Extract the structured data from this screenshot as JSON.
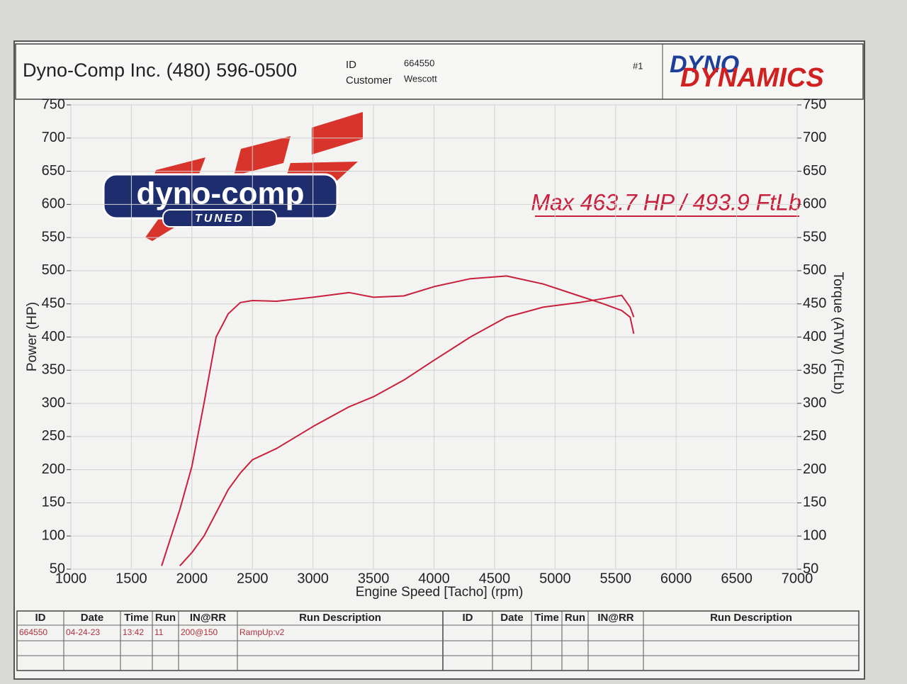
{
  "header": {
    "company": "Dyno-Comp Inc. (480) 596-0500",
    "id_label": "ID",
    "id": "664550",
    "customer_label": "Customer",
    "customer": "Wescott",
    "run_number": "#1",
    "brand_top": "DYNO",
    "brand_bottom": "DYNAMICS"
  },
  "logo": {
    "name": "dyno-comp",
    "tag": "TUNED"
  },
  "chart_data": {
    "type": "line",
    "annotation": "Max 463.7 HP  / 493.9 FtLb",
    "xlabel": "Engine Speed [Tacho] (rpm)",
    "ylabel": "Power (HP)",
    "y2label": "Torque (ATW) (FtLb)",
    "x": [
      1750,
      1900,
      2000,
      2100,
      2200,
      2300,
      2400,
      2500,
      2700,
      3000,
      3300,
      3500,
      3750,
      4000,
      4300,
      4600,
      4900,
      5200,
      5400,
      5550,
      5620,
      5650
    ],
    "series": [
      {
        "name": "Power (HP)",
        "color": "#c8203c",
        "axis": "y",
        "values": [
          null,
          55,
          75,
          100,
          135,
          170,
          195,
          215,
          232,
          265,
          295,
          310,
          335,
          365,
          400,
          430,
          445,
          452,
          458,
          463,
          445,
          430
        ]
      },
      {
        "name": "Torque (ATW) (FtLb)",
        "color": "#c8203c",
        "axis": "y2",
        "values": [
          55,
          140,
          205,
          300,
          400,
          435,
          452,
          455,
          454,
          460,
          467,
          460,
          462,
          476,
          488,
          492,
          480,
          462,
          450,
          440,
          430,
          405
        ]
      }
    ],
    "xlim": [
      1000,
      7000
    ],
    "xticks": [
      1000,
      1500,
      2000,
      2500,
      3000,
      3500,
      4000,
      4500,
      5000,
      5500,
      6000,
      6500,
      7000
    ],
    "ylim": [
      50,
      750
    ],
    "yticks": [
      50,
      100,
      150,
      200,
      250,
      300,
      350,
      400,
      450,
      500,
      550,
      600,
      650,
      700,
      750
    ],
    "y2lim": [
      50,
      750
    ],
    "y2ticks": [
      50,
      100,
      150,
      200,
      250,
      300,
      350,
      400,
      450,
      500,
      550,
      600,
      650,
      700,
      750
    ],
    "grid": true
  },
  "table": {
    "headers": [
      "ID",
      "Date",
      "Time",
      "Run",
      "IN@RR",
      "Run Description"
    ],
    "rows": [
      [
        "664550",
        "04-24-23",
        "13:42",
        "11",
        "200@150",
        "RampUp:v2"
      ]
    ]
  }
}
